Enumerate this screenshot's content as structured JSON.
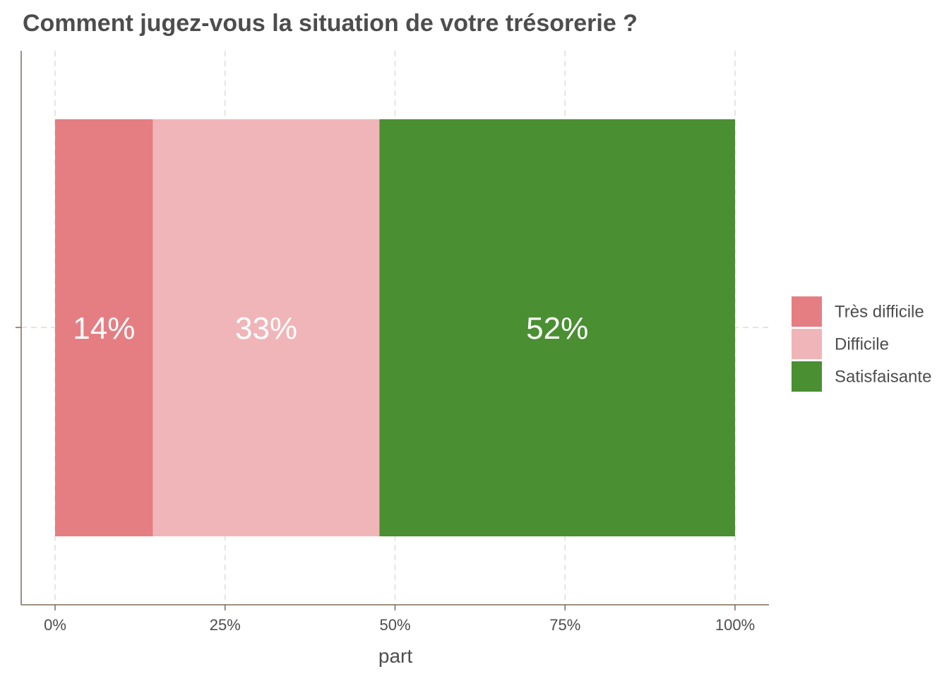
{
  "chart_data": {
    "type": "bar",
    "orientation": "horizontal",
    "stacked": true,
    "title": "Comment jugez-vous la situation de votre trésorerie ?",
    "xlabel": "part",
    "ylabel": "",
    "xlim": [
      0,
      1
    ],
    "x_ticks": [
      0,
      0.25,
      0.5,
      0.75,
      1
    ],
    "x_tick_labels": [
      "0%",
      "25%",
      "50%",
      "75%",
      "100%"
    ],
    "grid": true,
    "legend_position": "right",
    "series": [
      {
        "name": "Très difficile",
        "value": 0.144,
        "label": "14%",
        "color": "#e57e83"
      },
      {
        "name": "Difficile",
        "value": 0.333,
        "label": "33%",
        "color": "#f0b5b8"
      },
      {
        "name": "Satisfaisante",
        "value": 0.523,
        "label": "52%",
        "color": "#4a8f32"
      }
    ],
    "colors": {
      "title": "#4d4d4d",
      "text": "#4d4d4d",
      "axis": "#7f6a58",
      "grid": "#e2dcd6",
      "data_label": "#ffffff"
    }
  }
}
